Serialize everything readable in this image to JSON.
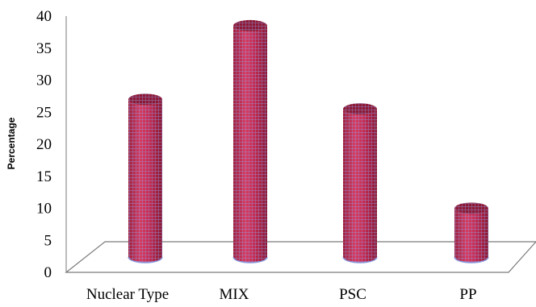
{
  "chart_data": {
    "type": "bar",
    "style": "3d-cylinder",
    "categories": [
      "Nuclear Type",
      "MIX",
      "PSC",
      "PP"
    ],
    "values": [
      27,
      38.5,
      25.5,
      10
    ],
    "ylabel": "Percentage",
    "xlabel": "",
    "ylim": [
      0,
      40
    ],
    "yticks": [
      0,
      5,
      10,
      15,
      20,
      25,
      30,
      35,
      40
    ],
    "grid": false,
    "legend": "none",
    "colors": {
      "bar": "#cc2a50",
      "bar_dark": "#8e1732",
      "mesh": "#7a8fd6",
      "floor_line": "#777777"
    }
  }
}
